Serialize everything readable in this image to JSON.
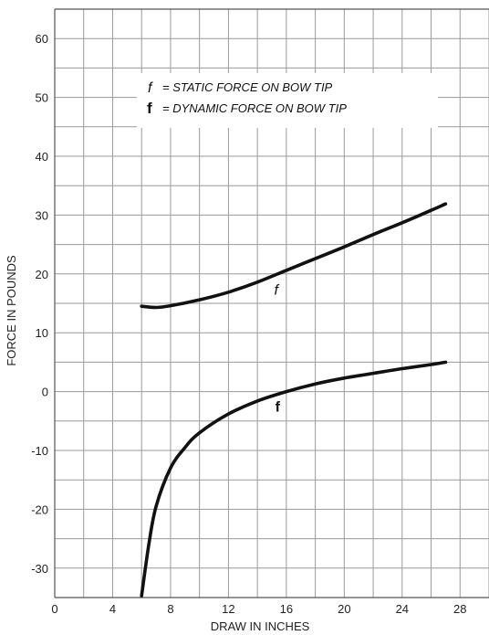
{
  "chart_data": {
    "type": "line",
    "xlabel": "DRAW IN INCHES",
    "ylabel": "FORCE IN POUNDS",
    "xlim": [
      0,
      30
    ],
    "ylim": [
      -35,
      65
    ],
    "x_ticks": [
      0,
      4,
      8,
      12,
      16,
      20,
      24,
      28
    ],
    "y_ticks": [
      60,
      50,
      40,
      30,
      20,
      10,
      0,
      -10,
      -20,
      -30
    ],
    "grid": true,
    "grid_x_step": 2,
    "grid_y_step": 5,
    "legend": {
      "placement": "top-center",
      "entries": [
        {
          "symbol": "f",
          "style": "italic",
          "text": "= STATIC FORCE ON BOW TIP"
        },
        {
          "symbol": "f",
          "style": "bold",
          "text": "= DYNAMIC FORCE ON BOW TIP"
        }
      ]
    },
    "series": [
      {
        "label": "f",
        "label_style": "italic",
        "label_at": [
          15.3,
          16.5
        ],
        "points": [
          [
            6,
            14.5
          ],
          [
            7,
            14.3
          ],
          [
            8,
            14.6
          ],
          [
            10,
            15.6
          ],
          [
            12,
            16.9
          ],
          [
            14,
            18.6
          ],
          [
            16,
            20.6
          ],
          [
            18,
            22.6
          ],
          [
            20,
            24.6
          ],
          [
            22,
            26.7
          ],
          [
            24,
            28.7
          ],
          [
            26,
            30.8
          ],
          [
            27,
            31.9
          ]
        ]
      },
      {
        "label": "f",
        "label_style": "bold",
        "label_at": [
          15.4,
          -3.4
        ],
        "points": [
          [
            6,
            -34.7
          ],
          [
            6.5,
            -26
          ],
          [
            7,
            -19.5
          ],
          [
            8,
            -13
          ],
          [
            9,
            -9.5
          ],
          [
            10,
            -7
          ],
          [
            12,
            -3.8
          ],
          [
            14,
            -1.6
          ],
          [
            16,
            0
          ],
          [
            18,
            1.3
          ],
          [
            20,
            2.3
          ],
          [
            22,
            3.1
          ],
          [
            24,
            3.9
          ],
          [
            26,
            4.6
          ],
          [
            27,
            5
          ]
        ]
      }
    ]
  }
}
